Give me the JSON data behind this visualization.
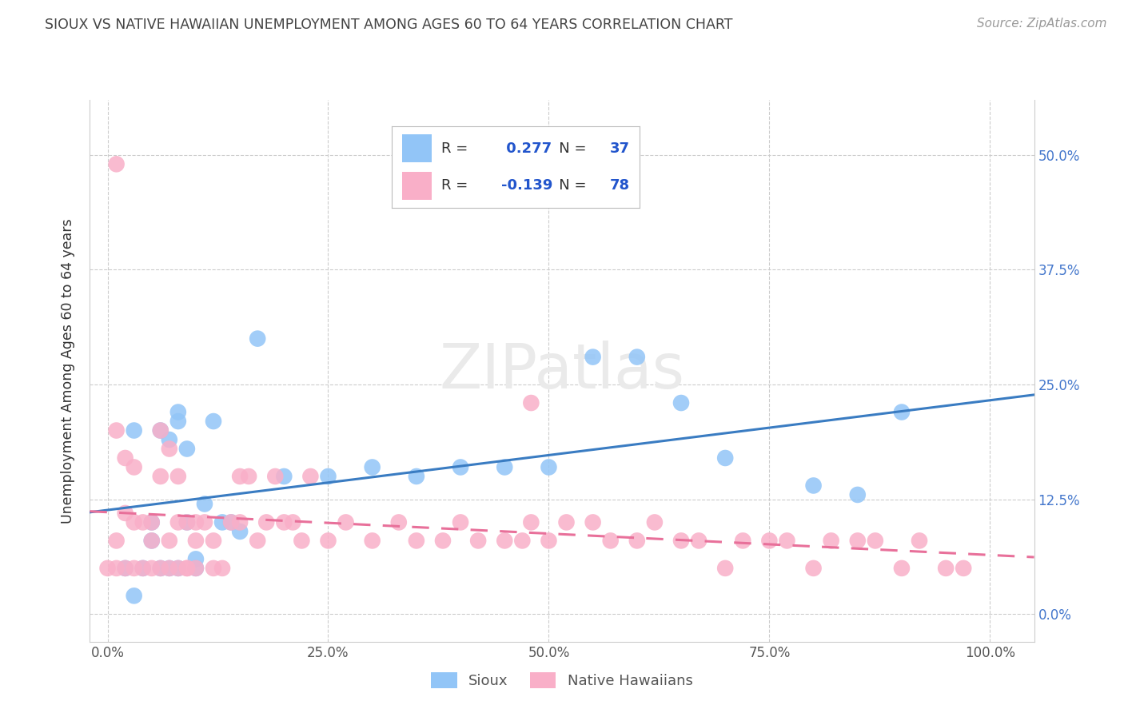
{
  "title": "SIOUX VS NATIVE HAWAIIAN UNEMPLOYMENT AMONG AGES 60 TO 64 YEARS CORRELATION CHART",
  "source": "Source: ZipAtlas.com",
  "ylabel": "Unemployment Among Ages 60 to 64 years",
  "xlim": [
    -2,
    105
  ],
  "ylim": [
    -3,
    56
  ],
  "xtick_vals": [
    0,
    25,
    50,
    75,
    100
  ],
  "xticklabels": [
    "0.0%",
    "25.0%",
    "50.0%",
    "75.0%",
    "100.0%"
  ],
  "ytick_vals": [
    0,
    12.5,
    25,
    37.5,
    50
  ],
  "yticklabels": [
    "0.0%",
    "12.5%",
    "25.0%",
    "37.5%",
    "50.0%"
  ],
  "sioux_R": 0.277,
  "sioux_N": 37,
  "native_R": -0.139,
  "native_N": 78,
  "sioux_color": "#92c5f7",
  "native_color": "#f9afc8",
  "sioux_line_color": "#3a7cc2",
  "native_line_color": "#e8709a",
  "legend_color": "#2255cc",
  "background_color": "#ffffff",
  "sioux_x": [
    2,
    3,
    4,
    5,
    6,
    6,
    7,
    7,
    8,
    8,
    8,
    9,
    9,
    10,
    10,
    11,
    12,
    13,
    14,
    15,
    17,
    20,
    25,
    30,
    35,
    40,
    45,
    50,
    55,
    60,
    65,
    70,
    80,
    85,
    90,
    3,
    5
  ],
  "sioux_y": [
    5,
    2,
    5,
    8,
    20,
    5,
    19,
    5,
    5,
    22,
    21,
    18,
    10,
    6,
    5,
    12,
    21,
    10,
    10,
    9,
    30,
    15,
    15,
    16,
    15,
    16,
    16,
    16,
    28,
    28,
    23,
    17,
    14,
    13,
    22,
    20,
    10
  ],
  "native_x": [
    0,
    1,
    1,
    1,
    2,
    2,
    2,
    3,
    3,
    3,
    4,
    4,
    5,
    5,
    5,
    6,
    6,
    6,
    7,
    7,
    7,
    8,
    8,
    8,
    9,
    9,
    9,
    10,
    10,
    10,
    11,
    12,
    12,
    13,
    14,
    15,
    15,
    16,
    17,
    18,
    19,
    20,
    21,
    22,
    23,
    25,
    27,
    30,
    33,
    35,
    38,
    40,
    42,
    45,
    47,
    48,
    50,
    52,
    55,
    57,
    60,
    62,
    65,
    67,
    70,
    72,
    75,
    77,
    80,
    82,
    85,
    87,
    90,
    92,
    95,
    97,
    1,
    48
  ],
  "native_y": [
    5,
    49,
    20,
    5,
    17,
    11,
    5,
    16,
    10,
    5,
    10,
    5,
    10,
    8,
    5,
    20,
    15,
    5,
    5,
    8,
    18,
    5,
    10,
    15,
    10,
    5,
    5,
    10,
    5,
    8,
    10,
    5,
    8,
    5,
    10,
    15,
    10,
    15,
    8,
    10,
    15,
    10,
    10,
    8,
    15,
    8,
    10,
    8,
    10,
    8,
    8,
    10,
    8,
    8,
    8,
    10,
    8,
    10,
    10,
    8,
    8,
    10,
    8,
    8,
    5,
    8,
    8,
    8,
    5,
    8,
    8,
    8,
    5,
    8,
    5,
    5,
    8,
    23
  ]
}
